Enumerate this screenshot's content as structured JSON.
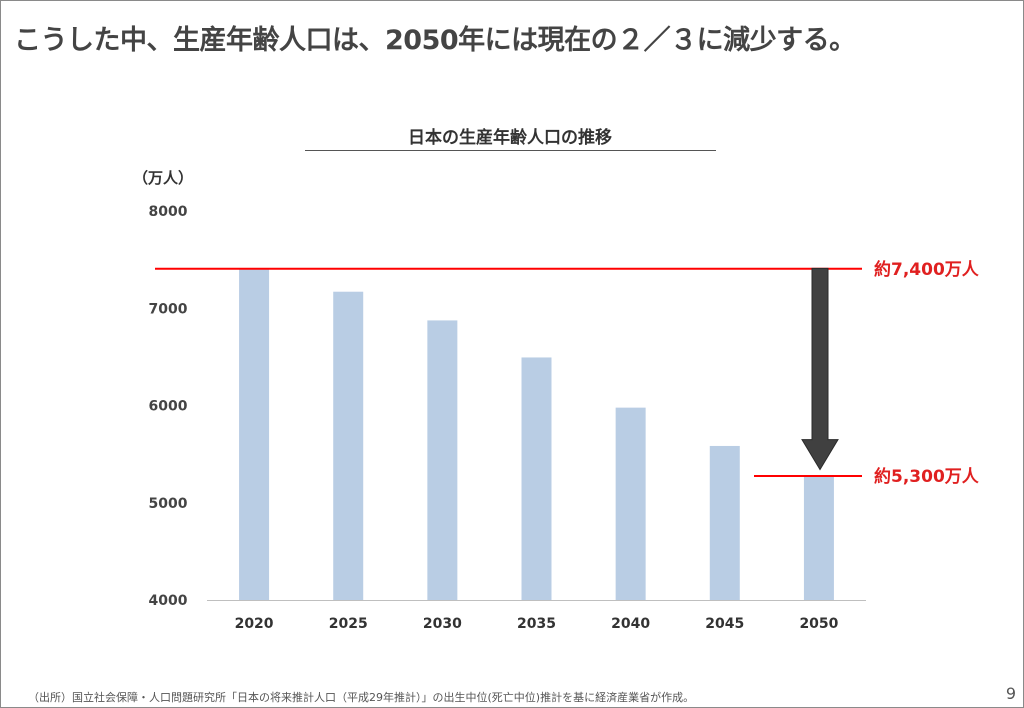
{
  "headline": "こうした中、生産年齢人口は、2050年には現在の２／３に減少する。",
  "unit_label": "（万人）",
  "footnote": "（出所）国立社会保障・人口問題研究所「日本の将来推計人口（平成29年推計）」の出生中位(死亡中位)推計を基に経済産業省が作成。",
  "page_number": "9",
  "colors": {
    "bar": "#b9cde4",
    "reference_line": "#ff0000",
    "annotation_text": "#e02020",
    "arrow": "#404040"
  },
  "chart_data": {
    "type": "bar",
    "title": "日本の生産年齢人口の推移",
    "xlabel": "",
    "ylabel": "（万人）",
    "categories": [
      "2020",
      "2025",
      "2030",
      "2035",
      "2040",
      "2045",
      "2050"
    ],
    "values": [
      7406,
      7170,
      6875,
      6494,
      5978,
      5584,
      5275
    ],
    "ylim": [
      4000,
      8000
    ],
    "yticks": [
      "4000",
      "5000",
      "6000",
      "7000",
      "8000"
    ],
    "grid": false,
    "annotations": [
      {
        "label": "約7,400万人",
        "value": 7406
      },
      {
        "label": "約5,300万人",
        "value": 5275
      }
    ],
    "arrow": {
      "from": 7400,
      "to": 5300
    }
  }
}
